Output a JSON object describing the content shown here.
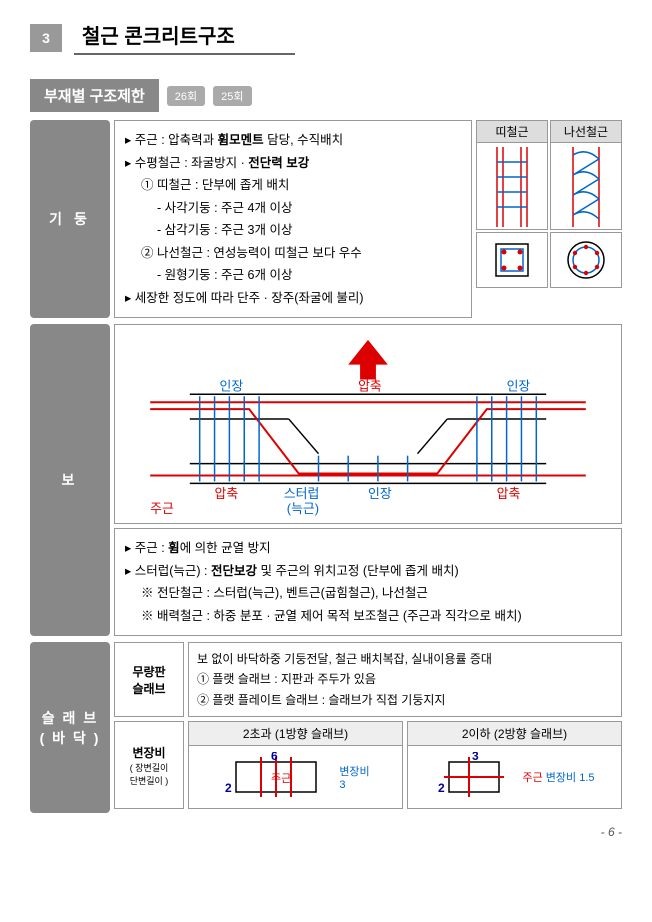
{
  "chapter": {
    "number": "3",
    "title": "철근 콘크리트구조"
  },
  "section": {
    "title": "부재별 구조제한",
    "badges": [
      "26회",
      "25회"
    ]
  },
  "column": {
    "label": "기 둥",
    "lines": [
      {
        "cls": "bullet",
        "html": "주근 : 압축력과 <b>휨모멘트</b> 담당, 수직배치"
      },
      {
        "cls": "bullet",
        "html": "수평철근 : 좌굴방지 · <b>전단력 보강</b>"
      },
      {
        "cls": "indent1",
        "html": "① 띠철근 : 단부에 좁게 배치"
      },
      {
        "cls": "indent2",
        "html": "- 사각기둥 : 주근 4개 이상"
      },
      {
        "cls": "indent2",
        "html": "- 삼각기둥 : 주근 3개 이상"
      },
      {
        "cls": "indent1",
        "html": "② 나선철근 : 연성능력이 띠철근 보다 우수"
      },
      {
        "cls": "indent2",
        "html": "- 원형기둥 : 주근 6개 이상"
      },
      {
        "cls": "bullet",
        "html": "세장한 정도에 따라 단주 · 장주(좌굴에 불리)"
      }
    ],
    "diagrams": [
      {
        "label": "띠철근"
      },
      {
        "label": "나선철근"
      }
    ]
  },
  "beam": {
    "label": "보",
    "svg_labels": {
      "tension1": "인장",
      "compression_top": "압축",
      "tension2": "인장",
      "compression_l": "압축",
      "stirrup": "스터럽",
      "stirrup2": "(늑근)",
      "tension_mid": "인장",
      "compression_r": "압축",
      "main_rebar": "주근"
    },
    "notes": [
      {
        "cls": "bullet",
        "html": "주근 : <b>휨</b>에 의한 균열 방지"
      },
      {
        "cls": "bullet",
        "html": "스터럽(늑근) : <b>전단보강</b> 및 주근의 위치고정 (단부에 좁게 배치)"
      },
      {
        "cls": "indent1",
        "html": "※ 전단철근 : 스터럽(늑근), 벤트근(굽힘철근), 나선철근"
      },
      {
        "cls": "indent1",
        "html": "※ 배력철근 : 하중 분포 · 균열 제어 목적 보조철근 (주근과 직각으로 배치)"
      }
    ]
  },
  "slab": {
    "label": "슬 래 브\n( 바 닥 )",
    "flat": {
      "label": "무량판\n슬래브",
      "lines": [
        "보 없이 바닥하중 기둥전달, 철근 배치복잡, 실내이용률 증대",
        "① 플랫 슬래브 : 지판과 주두가 있음",
        "② 플랫 플레이트 슬래브 : 슬래브가 직접 기둥지지"
      ]
    },
    "ratio": {
      "label": "변장비",
      "sublabel": "( 장변길이\n단변길이 )",
      "left": {
        "header": "2초과 (1방향 슬래브)",
        "num_top": "6",
        "num_left": "2",
        "main": "주근",
        "ratio_text": "변장비\n3"
      },
      "right": {
        "header": "2이하 (2방향 슬래브)",
        "num_top": "3",
        "num_left": "2",
        "main": "주근",
        "ratio_text": "변장비 1.5"
      }
    }
  },
  "page": "- 6 -",
  "colors": {
    "gray_bg": "#888888",
    "border": "#999999",
    "red": "#dd0000",
    "blue": "#0066cc",
    "badge_bg": "#aaaaaa",
    "header_bg": "#dddddd"
  }
}
